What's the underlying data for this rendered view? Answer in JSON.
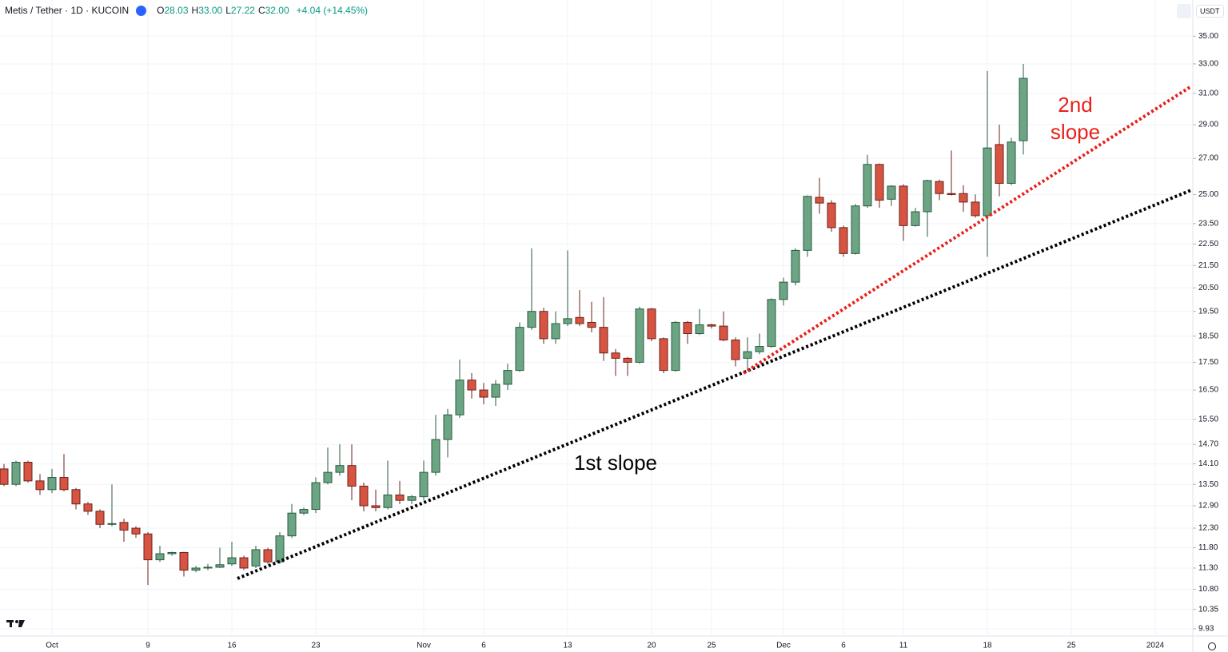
{
  "chart_data": {
    "type": "candlestick",
    "header": {
      "symbol": "Metis / Tether · 1D · KUCOIN",
      "ohlc": [
        {
          "key": "O",
          "value": "28.03"
        },
        {
          "key": "H",
          "value": "33.00"
        },
        {
          "key": "L",
          "value": "27.22"
        },
        {
          "key": "C",
          "value": "32.00"
        }
      ],
      "change": "+4.04 (+14.45%)",
      "currency": "USDT"
    },
    "categories": [
      null,
      null,
      null,
      null,
      "Oct",
      null,
      null,
      null,
      null,
      null,
      null,
      null,
      "9",
      null,
      null,
      null,
      null,
      null,
      null,
      "16",
      null,
      null,
      null,
      null,
      null,
      null,
      "23",
      null,
      null,
      null,
      null,
      null,
      null,
      null,
      null,
      "Nov",
      null,
      null,
      null,
      null,
      "6",
      null,
      null,
      null,
      null,
      null,
      null,
      "13",
      null,
      null,
      null,
      null,
      null,
      null,
      "20",
      null,
      null,
      null,
      null,
      "25",
      null,
      null,
      null,
      null,
      null,
      "Dec",
      null,
      null,
      null,
      null,
      "6",
      null,
      null,
      null,
      null,
      "11",
      null,
      null,
      null,
      null,
      null,
      null,
      "18",
      null,
      null,
      null,
      null,
      null,
      null,
      "25",
      null,
      null,
      null,
      null,
      null,
      null,
      "2024",
      null,
      null
    ],
    "open": [
      13.95,
      13.5,
      14.15,
      13.6,
      13.35,
      13.7,
      13.35,
      12.95,
      12.75,
      12.4,
      12.45,
      12.3,
      12.15,
      11.5,
      11.65,
      11.68,
      11.25,
      11.3,
      11.32,
      11.4,
      11.55,
      11.35,
      11.75,
      11.45,
      12.1,
      12.7,
      12.8,
      13.55,
      13.85,
      14.05,
      13.45,
      12.9,
      12.85,
      13.2,
      13.05,
      13.15,
      13.85,
      14.85,
      15.65,
      16.85,
      16.5,
      16.25,
      16.7,
      17.2,
      18.85,
      19.5,
      18.4,
      19.0,
      19.25,
      19.05,
      18.85,
      17.85,
      17.65,
      17.5,
      19.6,
      18.4,
      17.2,
      19.05,
      18.6,
      18.95,
      18.9,
      18.35,
      17.65,
      17.9,
      18.1,
      20.0,
      20.75,
      22.2,
      24.85,
      24.55,
      23.3,
      22.05,
      24.4,
      26.65,
      24.75,
      25.45,
      23.4,
      24.1,
      25.7,
      25.05,
      25.05,
      24.6,
      23.9,
      27.8,
      25.6,
      28.03,
      null,
      null,
      null,
      null,
      null,
      null,
      null,
      null,
      null,
      null,
      null,
      null,
      null
    ],
    "high": [
      14.1,
      14.2,
      14.2,
      13.8,
      13.95,
      14.4,
      13.4,
      13.0,
      12.8,
      13.5,
      12.55,
      12.35,
      12.2,
      11.85,
      11.7,
      11.7,
      11.35,
      11.4,
      11.8,
      11.95,
      11.6,
      11.85,
      11.8,
      12.2,
      12.95,
      12.85,
      13.7,
      14.6,
      14.7,
      14.7,
      13.55,
      13.35,
      14.2,
      13.6,
      13.2,
      14.2,
      15.65,
      15.85,
      17.6,
      17.1,
      16.75,
      16.85,
      17.45,
      19.05,
      22.3,
      19.65,
      19.5,
      22.2,
      20.4,
      19.9,
      20.1,
      18.0,
      17.7,
      19.7,
      19.65,
      18.45,
      19.1,
      19.1,
      19.6,
      19.0,
      19.5,
      18.45,
      18.45,
      18.6,
      20.05,
      20.95,
      22.3,
      24.95,
      25.9,
      24.7,
      23.4,
      24.5,
      27.2,
      26.7,
      25.5,
      25.55,
      24.3,
      25.8,
      25.8,
      27.45,
      25.5,
      25.0,
      32.5,
      29.0,
      28.2,
      33.0,
      null,
      null,
      null,
      null,
      null,
      null,
      null,
      null,
      null,
      null,
      null,
      null,
      null
    ],
    "low": [
      13.45,
      13.45,
      13.55,
      13.2,
      13.25,
      13.3,
      12.8,
      12.65,
      12.3,
      12.35,
      11.95,
      12.05,
      10.9,
      11.45,
      11.6,
      11.1,
      11.2,
      11.25,
      11.3,
      11.35,
      11.25,
      11.3,
      11.4,
      11.4,
      12.05,
      12.65,
      12.7,
      13.5,
      13.75,
      13.05,
      12.75,
      12.75,
      12.8,
      12.95,
      12.95,
      13.05,
      13.75,
      14.3,
      15.55,
      16.2,
      16.0,
      15.95,
      16.5,
      17.15,
      18.75,
      18.2,
      18.2,
      18.9,
      18.9,
      18.65,
      17.55,
      17.0,
      17.0,
      17.45,
      18.3,
      17.1,
      17.15,
      18.2,
      18.55,
      18.8,
      18.3,
      17.35,
      17.2,
      17.8,
      18.05,
      19.75,
      20.6,
      21.9,
      24.0,
      23.1,
      21.9,
      22.0,
      24.3,
      24.3,
      24.4,
      22.65,
      23.35,
      22.85,
      24.7,
      24.95,
      24.1,
      23.8,
      21.9,
      24.9,
      25.5,
      27.22,
      null,
      null,
      null,
      null,
      null,
      null,
      null,
      null,
      null,
      null,
      null,
      null,
      null
    ],
    "close": [
      13.5,
      14.15,
      13.6,
      13.35,
      13.7,
      13.35,
      12.95,
      12.75,
      12.4,
      12.42,
      12.25,
      12.15,
      11.5,
      11.65,
      11.68,
      11.25,
      11.3,
      11.32,
      11.38,
      11.55,
      11.3,
      11.75,
      11.45,
      12.1,
      12.7,
      12.8,
      13.55,
      13.85,
      14.05,
      13.45,
      12.9,
      12.85,
      13.2,
      13.05,
      13.15,
      13.85,
      14.85,
      15.65,
      16.85,
      16.5,
      16.25,
      16.7,
      17.2,
      18.85,
      19.5,
      18.4,
      19.0,
      19.2,
      19.0,
      18.85,
      17.85,
      17.65,
      17.5,
      19.6,
      18.4,
      17.2,
      19.05,
      18.6,
      18.95,
      18.9,
      18.35,
      17.6,
      17.9,
      18.1,
      20.0,
      20.75,
      22.2,
      24.9,
      24.55,
      23.3,
      22.05,
      24.4,
      26.65,
      24.7,
      25.45,
      23.4,
      24.1,
      25.75,
      25.05,
      25.0,
      24.6,
      23.9,
      27.6,
      25.6,
      27.95,
      32.0,
      null,
      null,
      null,
      null,
      null,
      null,
      null,
      null,
      null,
      null,
      null,
      null,
      null
    ],
    "up_color": "#6ba583",
    "down_color": "#d75442",
    "ylim": [
      9.78,
      37.8
    ],
    "log_scale": true,
    "grid": true,
    "yticks": [
      {
        "value": 35,
        "label": "35.00"
      },
      {
        "value": 33,
        "label": "33.00"
      },
      {
        "value": 31,
        "label": "31.00"
      },
      {
        "value": 29,
        "label": "29.00"
      },
      {
        "value": 27,
        "label": "27.00"
      },
      {
        "value": 25,
        "label": "25.00"
      },
      {
        "value": 23.5,
        "label": "23.50"
      },
      {
        "value": 22.5,
        "label": "22.50"
      },
      {
        "value": 21.5,
        "label": "21.50"
      },
      {
        "value": 20.5,
        "label": "20.50"
      },
      {
        "value": 19.5,
        "label": "19.50"
      },
      {
        "value": 18.5,
        "label": "18.50"
      },
      {
        "value": 17.5,
        "label": "17.50"
      },
      {
        "value": 16.5,
        "label": "16.50"
      },
      {
        "value": 15.5,
        "label": "15.50"
      },
      {
        "value": 14.7,
        "label": "14.70"
      },
      {
        "value": 14.1,
        "label": "14.10"
      },
      {
        "value": 13.5,
        "label": "13.50"
      },
      {
        "value": 12.9,
        "label": "12.90"
      },
      {
        "value": 12.3,
        "label": "12.30"
      },
      {
        "value": 11.8,
        "label": "11.80"
      },
      {
        "value": 11.3,
        "label": "11.30"
      },
      {
        "value": 10.8,
        "label": "10.80"
      },
      10.35,
      9.93
    ],
    "annotations": [
      {
        "lines": [
          "1st slope"
        ],
        "color": "#000000"
      },
      {
        "lines": [
          "2nd",
          "slope"
        ],
        "color": "#e8201a"
      }
    ]
  }
}
